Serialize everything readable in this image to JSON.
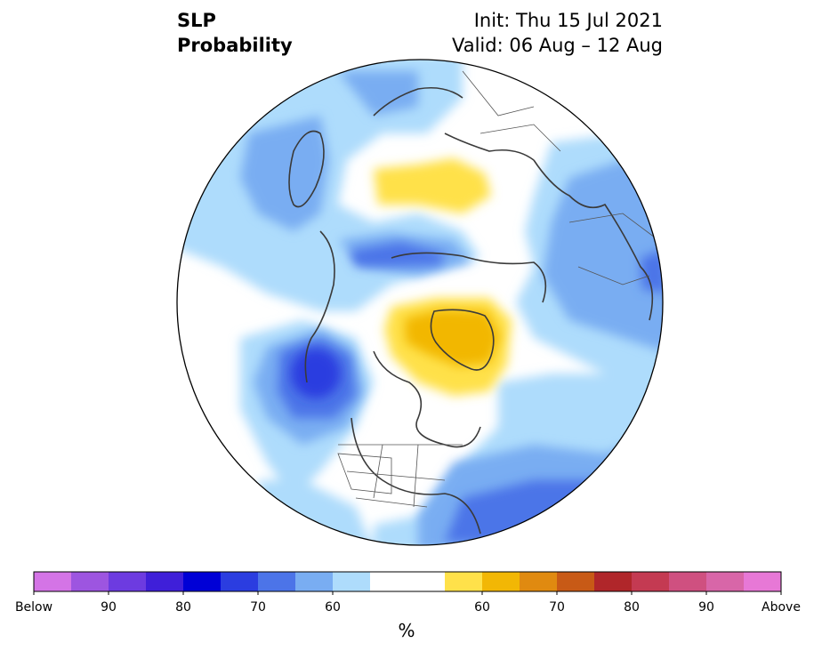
{
  "title": {
    "left_line1": "SLP",
    "left_line2": "Probability",
    "init": "Init: Thu 15 Jul 2021",
    "valid": "Valid: 06 Aug – 12 Aug"
  },
  "colorbar": {
    "unit": "%",
    "colors": [
      "#d474e6",
      "#9d55e0",
      "#6d3be0",
      "#3f1fd9",
      "#0000d6",
      "#2b3de0",
      "#4c74e8",
      "#79adf2",
      "#aedcfc",
      "#ffffff",
      "#ffffff",
      "#ffe14a",
      "#f2b705",
      "#e08a10",
      "#c85a16",
      "#b0262a",
      "#c43a52",
      "#cf5080",
      "#d866a8",
      "#e778d6"
    ],
    "tick_labels": [
      "Below",
      "90",
      "80",
      "70",
      "60",
      "60",
      "70",
      "80",
      "90",
      "Above"
    ]
  },
  "map_colors": {
    "below_light": "#aedcfc",
    "below_mid": "#79adf2",
    "below_strong": "#4c74e8",
    "below_deep": "#2b3de0",
    "above_light": "#ffe14a",
    "above_mid": "#f2b705",
    "coast": "#3a3a3a",
    "border": "#555555"
  }
}
